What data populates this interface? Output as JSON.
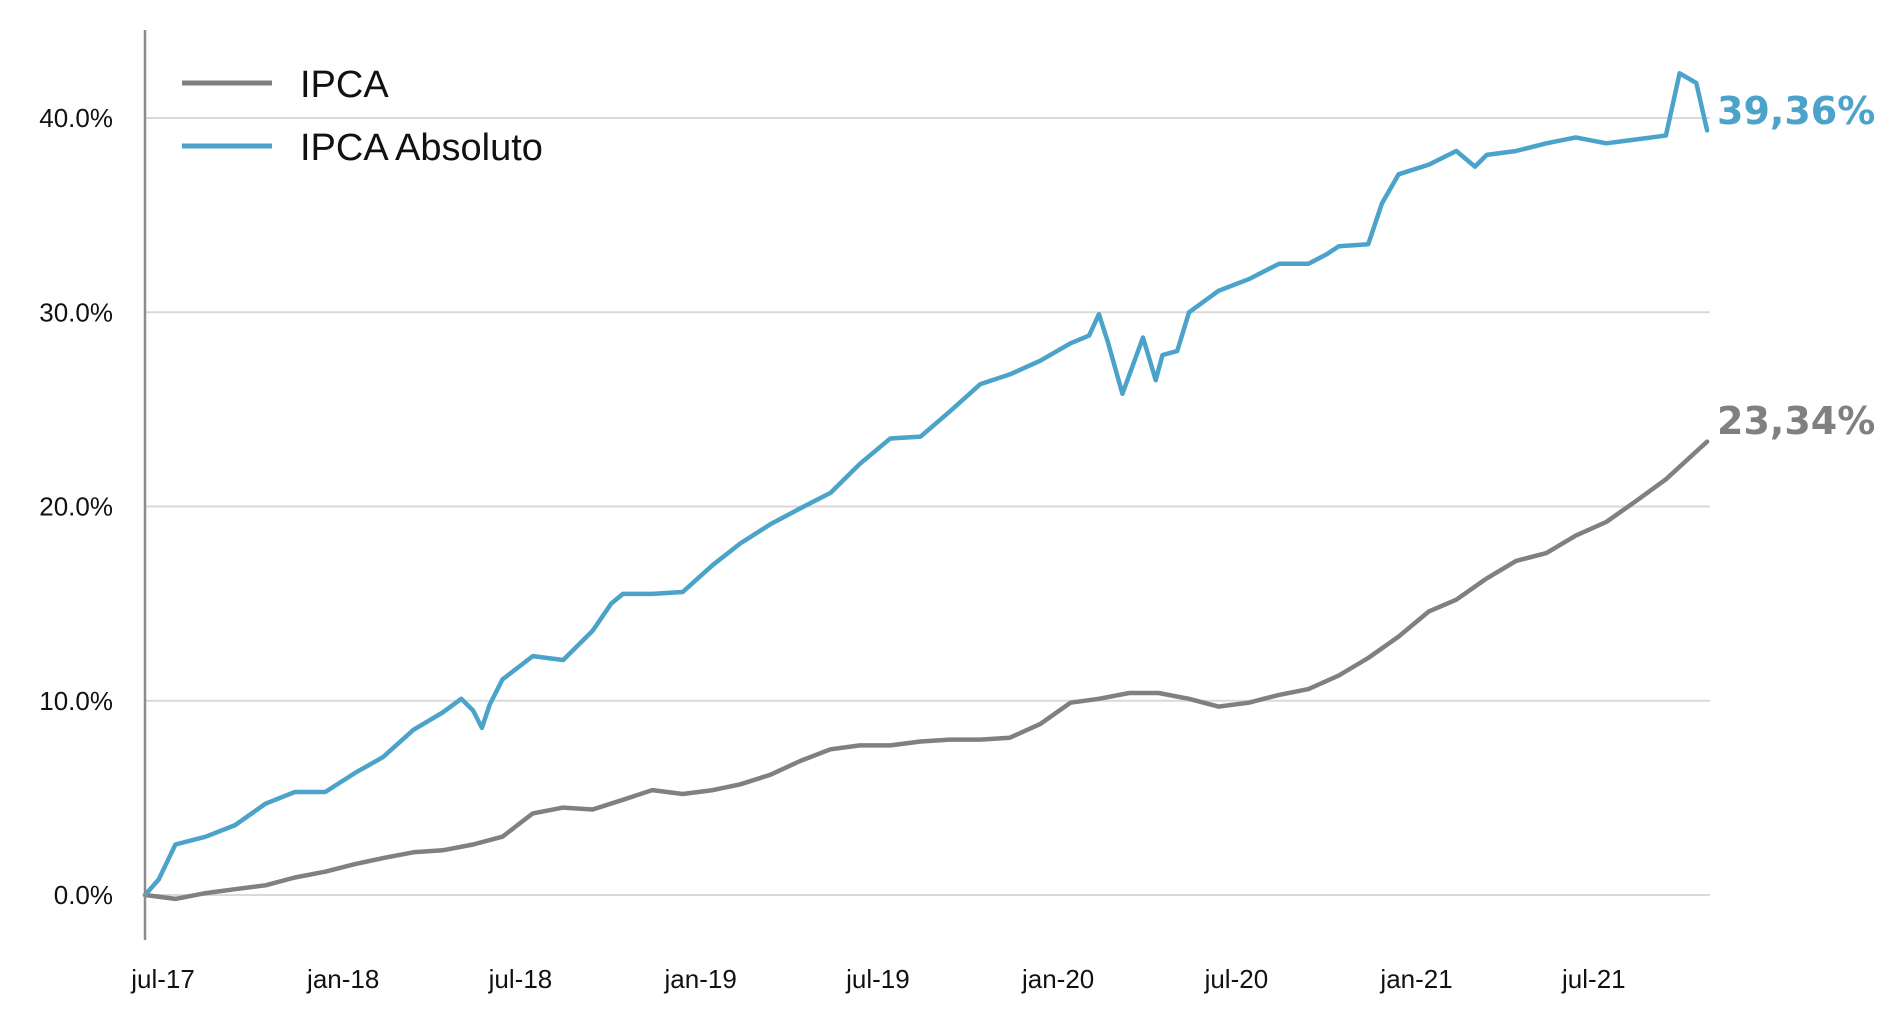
{
  "chart_data": {
    "type": "line",
    "title": "",
    "xlabel": "",
    "ylabel": "",
    "ylim": [
      -0.02,
      0.43
    ],
    "xlim": [
      "2017-07-01",
      "2021-11-15"
    ],
    "y_ticks": [
      {
        "value": 0.0,
        "label": "0.0%"
      },
      {
        "value": 0.1,
        "label": "10.0%"
      },
      {
        "value": 0.2,
        "label": "20.0%"
      },
      {
        "value": 0.3,
        "label": "30.0%"
      },
      {
        "value": 0.4,
        "label": "40.0%"
      }
    ],
    "x_ticks": [
      {
        "value": "2017-07-01",
        "label": "jul-17"
      },
      {
        "value": "2018-01-01",
        "label": "jan-18"
      },
      {
        "value": "2018-07-01",
        "label": "jul-18"
      },
      {
        "value": "2019-01-01",
        "label": "jan-19"
      },
      {
        "value": "2019-07-01",
        "label": "jul-19"
      },
      {
        "value": "2020-01-01",
        "label": "jan-20"
      },
      {
        "value": "2020-07-01",
        "label": "jul-20"
      },
      {
        "value": "2021-01-01",
        "label": "jan-21"
      },
      {
        "value": "2021-07-01",
        "label": "jul-21"
      }
    ],
    "grid": "horizontal",
    "legend_position": "top-left",
    "series": [
      {
        "name": "IPCA",
        "color": "#808080",
        "end_label": "23,34%",
        "x": [
          "2017-07-01",
          "2017-08-01",
          "2017-09-01",
          "2017-10-01",
          "2017-11-01",
          "2017-12-01",
          "2018-01-01",
          "2018-02-01",
          "2018-03-01",
          "2018-04-01",
          "2018-05-01",
          "2018-06-01",
          "2018-07-01",
          "2018-08-01",
          "2018-09-01",
          "2018-10-01",
          "2018-11-01",
          "2018-12-01",
          "2019-01-01",
          "2019-02-01",
          "2019-03-01",
          "2019-04-01",
          "2019-05-01",
          "2019-06-01",
          "2019-07-01",
          "2019-08-01",
          "2019-09-01",
          "2019-10-01",
          "2019-11-01",
          "2019-12-01",
          "2020-01-01",
          "2020-02-01",
          "2020-03-01",
          "2020-04-01",
          "2020-05-01",
          "2020-06-01",
          "2020-07-01",
          "2020-08-01",
          "2020-09-01",
          "2020-10-01",
          "2020-11-01",
          "2020-12-01",
          "2021-01-01",
          "2021-02-01",
          "2021-03-01",
          "2021-04-01",
          "2021-05-01",
          "2021-06-01",
          "2021-07-01",
          "2021-08-01",
          "2021-09-01",
          "2021-10-01",
          "2021-11-12"
        ],
        "values": [
          0.0,
          -0.002,
          0.001,
          0.003,
          0.005,
          0.009,
          0.012,
          0.016,
          0.019,
          0.022,
          0.023,
          0.026,
          0.03,
          0.042,
          0.045,
          0.044,
          0.049,
          0.054,
          0.052,
          0.054,
          0.057,
          0.062,
          0.069,
          0.075,
          0.077,
          0.077,
          0.079,
          0.08,
          0.08,
          0.081,
          0.088,
          0.099,
          0.101,
          0.104,
          0.104,
          0.101,
          0.097,
          0.099,
          0.103,
          0.106,
          0.113,
          0.122,
          0.133,
          0.146,
          0.152,
          0.163,
          0.172,
          0.176,
          0.185,
          0.192,
          0.203,
          0.214,
          0.2334
        ]
      },
      {
        "name": "IPCA Absoluto",
        "color": "#4ba3c9",
        "end_label": "39,36%",
        "x": [
          "2017-07-01",
          "2017-07-15",
          "2017-08-01",
          "2017-09-01",
          "2017-10-01",
          "2017-11-01",
          "2017-12-01",
          "2018-01-01",
          "2018-02-01",
          "2018-03-01",
          "2018-04-01",
          "2018-05-01",
          "2018-05-20",
          "2018-06-01",
          "2018-06-10",
          "2018-06-18",
          "2018-07-01",
          "2018-08-01",
          "2018-09-01",
          "2018-10-01",
          "2018-10-20",
          "2018-11-01",
          "2018-12-01",
          "2019-01-01",
          "2019-02-01",
          "2019-03-01",
          "2019-04-01",
          "2019-05-01",
          "2019-06-01",
          "2019-07-01",
          "2019-08-01",
          "2019-09-01",
          "2019-10-01",
          "2019-11-01",
          "2019-12-01",
          "2020-01-01",
          "2020-02-01",
          "2020-02-20",
          "2020-03-01",
          "2020-03-10",
          "2020-03-25",
          "2020-04-15",
          "2020-04-28",
          "2020-05-05",
          "2020-05-20",
          "2020-06-01",
          "2020-07-01",
          "2020-08-01",
          "2020-09-01",
          "2020-10-01",
          "2020-10-20",
          "2020-11-01",
          "2020-12-01",
          "2020-12-15",
          "2021-01-01",
          "2021-02-01",
          "2021-03-01",
          "2021-03-20",
          "2021-04-01",
          "2021-05-01",
          "2021-06-01",
          "2021-07-01",
          "2021-08-01",
          "2021-09-01",
          "2021-10-01",
          "2021-10-15",
          "2021-11-01",
          "2021-11-12"
        ],
        "values": [
          0.0,
          0.008,
          0.026,
          0.03,
          0.036,
          0.047,
          0.053,
          0.053,
          0.063,
          0.071,
          0.085,
          0.094,
          0.101,
          0.095,
          0.086,
          0.098,
          0.111,
          0.123,
          0.121,
          0.136,
          0.15,
          0.155,
          0.155,
          0.156,
          0.17,
          0.181,
          0.191,
          0.199,
          0.207,
          0.222,
          0.235,
          0.236,
          0.249,
          0.263,
          0.268,
          0.275,
          0.284,
          0.288,
          0.299,
          0.285,
          0.258,
          0.287,
          0.265,
          0.278,
          0.28,
          0.3,
          0.311,
          0.317,
          0.325,
          0.325,
          0.33,
          0.334,
          0.335,
          0.356,
          0.371,
          0.376,
          0.383,
          0.375,
          0.381,
          0.383,
          0.387,
          0.39,
          0.387,
          0.389,
          0.391,
          0.423,
          0.418,
          0.3936
        ]
      }
    ]
  }
}
